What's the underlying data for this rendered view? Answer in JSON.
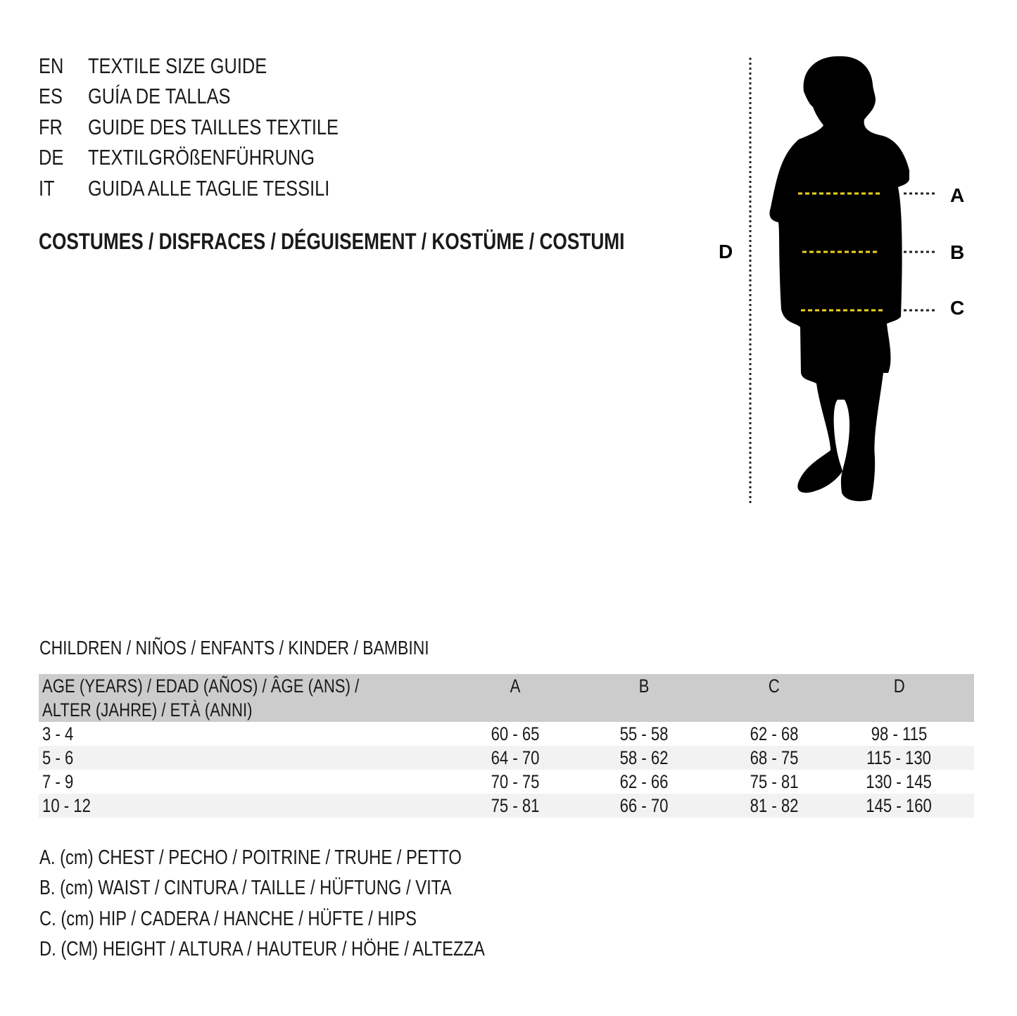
{
  "titles": [
    {
      "lang": "EN",
      "text": "TEXTILE SIZE GUIDE"
    },
    {
      "lang": "ES",
      "text": "GUÍA DE TALLAS"
    },
    {
      "lang": "FR",
      "text": "GUIDE DES TAILLES TEXTILE"
    },
    {
      "lang": "DE",
      "text": "TEXTILGRÖßENFÜHRUNG"
    },
    {
      "lang": "IT",
      "text": "GUIDA ALLE TAGLIE TESSILI"
    }
  ],
  "category": "COSTUMES / DISFRACES / DÉGUISEMENT / KOSTÜME / COSTUMI",
  "figure": {
    "labels": {
      "a": "A",
      "b": "B",
      "c": "C",
      "d": "D"
    },
    "measure_line_color": "#f2d31b",
    "silhouette_color": "#000000"
  },
  "group": "CHILDREN / NIÑOS / ENFANTS / KINDER / BAMBINI",
  "table": {
    "header": {
      "age_line1": "AGE (YEARS) / EDAD (AÑOS) / ÂGE (ANS) /",
      "age_line2": "ALTER (JAHRE) / ETÀ (ANNI)",
      "a": "A",
      "b": "B",
      "c": "C",
      "d": "D"
    },
    "rows": [
      [
        "3 - 4",
        "60 - 65",
        "55 - 58",
        "62 - 68",
        "98 - 115"
      ],
      [
        "5 - 6",
        "64 - 70",
        "58 - 62",
        "68 - 75",
        "115 - 130"
      ],
      [
        "7 - 9",
        "70 - 75",
        "62 - 66",
        "75 - 81",
        "130 - 145"
      ],
      [
        "10 - 12",
        "75 - 81",
        "66 - 70",
        "81 - 82",
        "145 - 160"
      ]
    ],
    "header_bg": "#cccccc",
    "stripe_bg": "#f2f2f2"
  },
  "legend": [
    "A. (cm) CHEST / PECHO / POITRINE / TRUHE / PETTO",
    "B. (cm) WAIST / CINTURA / TAILLE / HÜFTUNG / VITA",
    "C. (cm) HIP / CADERA / HANCHE / HÜFTE / HIPS",
    "D. (CM) HEIGHT / ALTURA / HAUTEUR / HÖHE / ALTEZZA"
  ]
}
